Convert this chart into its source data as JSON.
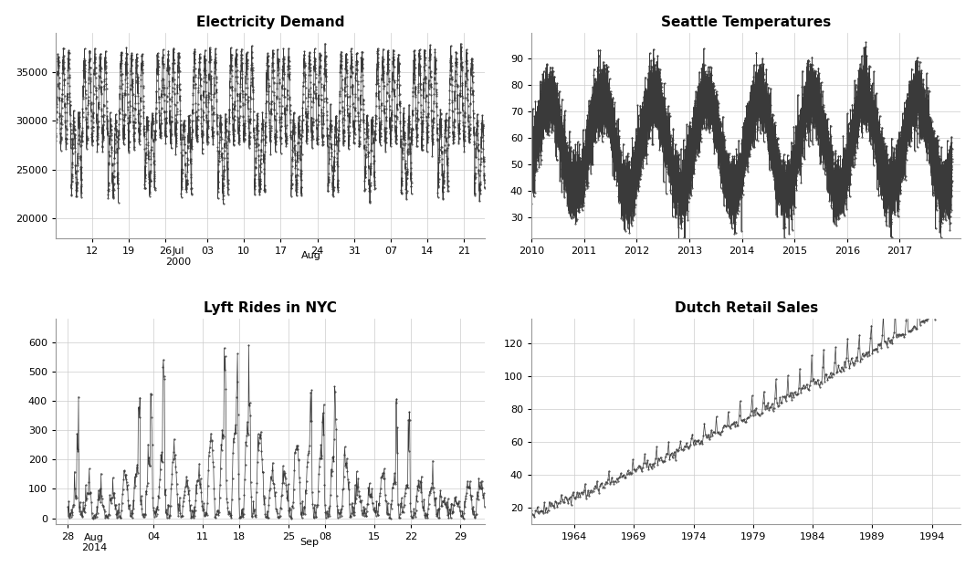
{
  "elec_title": "Electricity Demand",
  "elec_ylim": [
    18000,
    39000
  ],
  "elec_yticks": [
    20000,
    25000,
    30000,
    35000
  ],
  "seattle_title": "Seattle Temperatures",
  "seattle_ylim": [
    22,
    100
  ],
  "seattle_yticks": [
    30,
    40,
    50,
    60,
    70,
    80,
    90
  ],
  "lyft_title": "Lyft Rides in NYC",
  "lyft_ylim": [
    -20,
    680
  ],
  "lyft_yticks": [
    0,
    100,
    200,
    300,
    400,
    500,
    600
  ],
  "dutch_title": "Dutch Retail Sales",
  "dutch_ylim": [
    10,
    135
  ],
  "dutch_yticks": [
    20,
    40,
    60,
    80,
    100,
    120
  ],
  "dot_color": "#3a3a3a",
  "bg_color": "#ffffff",
  "grid_color": "#cccccc"
}
